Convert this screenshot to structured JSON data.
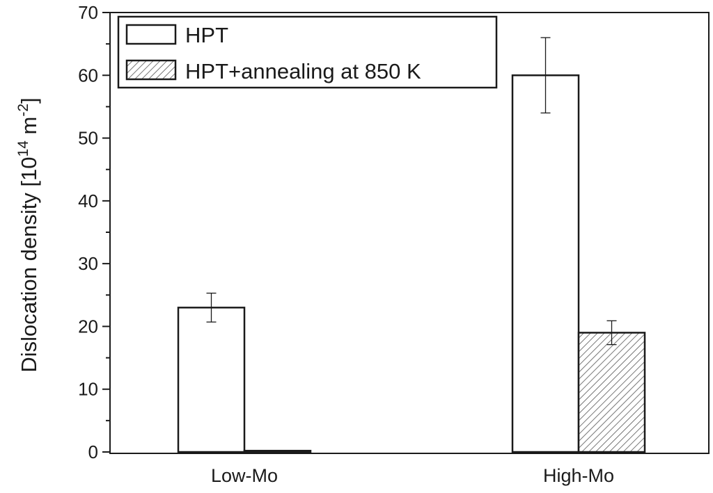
{
  "chart_data": {
    "type": "bar",
    "categories": [
      "Low-Mo",
      "High-Mo"
    ],
    "series": [
      {
        "name": "HPT",
        "values": [
          23,
          60
        ],
        "errors": [
          2.3,
          6
        ],
        "fill": "none"
      },
      {
        "name": "HPT+annealing at 850 K",
        "values": [
          0.2,
          19
        ],
        "errors": [
          0,
          1.9
        ],
        "fill": "hatched"
      }
    ],
    "title": "",
    "xlabel": "",
    "ylabel": {
      "base": "Dislocation density [10",
      "exp1": "14",
      "mid": " m",
      "exp2": "-2",
      "end": "]"
    },
    "ylim": [
      0,
      70
    ],
    "yticks": [
      0,
      10,
      20,
      30,
      40,
      50,
      60,
      70
    ],
    "grid": false,
    "legend_position": "top-left",
    "colors": {
      "axis": "#1a1a1a",
      "bar_fill": "#ffffff",
      "hatch": "#555555"
    }
  }
}
